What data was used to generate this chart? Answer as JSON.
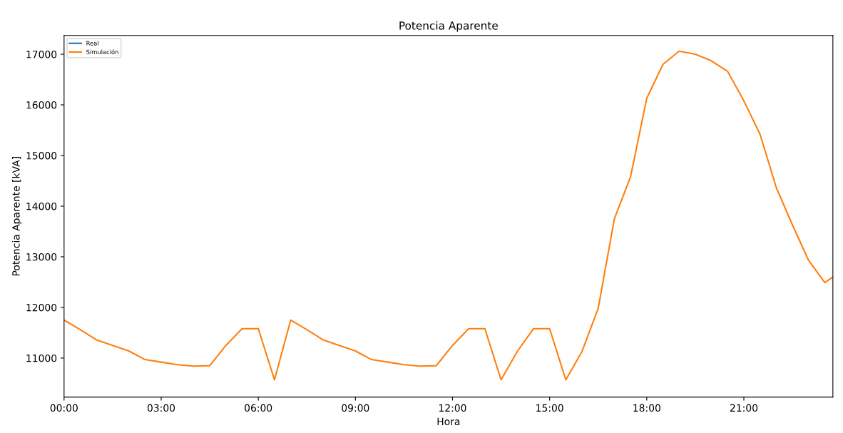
{
  "chart_data": {
    "type": "line",
    "title": "Potencia Aparente",
    "xlabel": "Hora",
    "ylabel": "Potencia Aparente [kVA]",
    "x": [
      0,
      0.5,
      1,
      1.5,
      2,
      2.5,
      3,
      3.5,
      4,
      4.5,
      5,
      5.5,
      6,
      6.5,
      7,
      7.5,
      8,
      8.5,
      9,
      9.5,
      10,
      10.5,
      11,
      11.5,
      12,
      12.5,
      13,
      13.5,
      14,
      14.5,
      15,
      15.5,
      16,
      16.5,
      17,
      17.5,
      18,
      18.5,
      19,
      19.5,
      20,
      20.5,
      21,
      21.5,
      22,
      22.5,
      23,
      23.5,
      23.75
    ],
    "series": [
      {
        "name": "Real",
        "color": "#1f77b4",
        "values": [
          null,
          null,
          null,
          null,
          null,
          null,
          null,
          null,
          null,
          null,
          null,
          null,
          null,
          null,
          null,
          null,
          null,
          null,
          null,
          null,
          null,
          null,
          null,
          null,
          null,
          null,
          null,
          null,
          null,
          null,
          null,
          null,
          null,
          null,
          null,
          null,
          null,
          null,
          null,
          null,
          null,
          null,
          null,
          null,
          null,
          null,
          null,
          null,
          null
        ]
      },
      {
        "name": "Simulación",
        "color": "#ff7f0e",
        "values": [
          11750,
          11560,
          11360,
          11250,
          11140,
          10970,
          10920,
          10870,
          10840,
          10850,
          11250,
          11580,
          11580,
          10570,
          11750,
          11560,
          11360,
          11250,
          11140,
          10970,
          10920,
          10870,
          10840,
          10850,
          11250,
          11580,
          11580,
          10570,
          11130,
          11580,
          11580,
          10570,
          11130,
          11980,
          13750,
          14580,
          16130,
          16800,
          17060,
          17000,
          16870,
          16660,
          16080,
          15420,
          14370,
          13630,
          12930,
          12490,
          12600
        ]
      }
    ],
    "xlim": [
      0,
      23.75
    ],
    "ylim": [
      10230,
      17370
    ],
    "xticks": [
      {
        "value": 0,
        "label": "00:00"
      },
      {
        "value": 3,
        "label": "03:00"
      },
      {
        "value": 6,
        "label": "06:00"
      },
      {
        "value": 9,
        "label": "09:00"
      },
      {
        "value": 12,
        "label": "12:00"
      },
      {
        "value": 15,
        "label": "15:00"
      },
      {
        "value": 18,
        "label": "18:00"
      },
      {
        "value": 21,
        "label": "21:00"
      }
    ],
    "yticks": [
      11000,
      12000,
      13000,
      14000,
      15000,
      16000,
      17000
    ],
    "legend": "top left",
    "grid": false
  }
}
